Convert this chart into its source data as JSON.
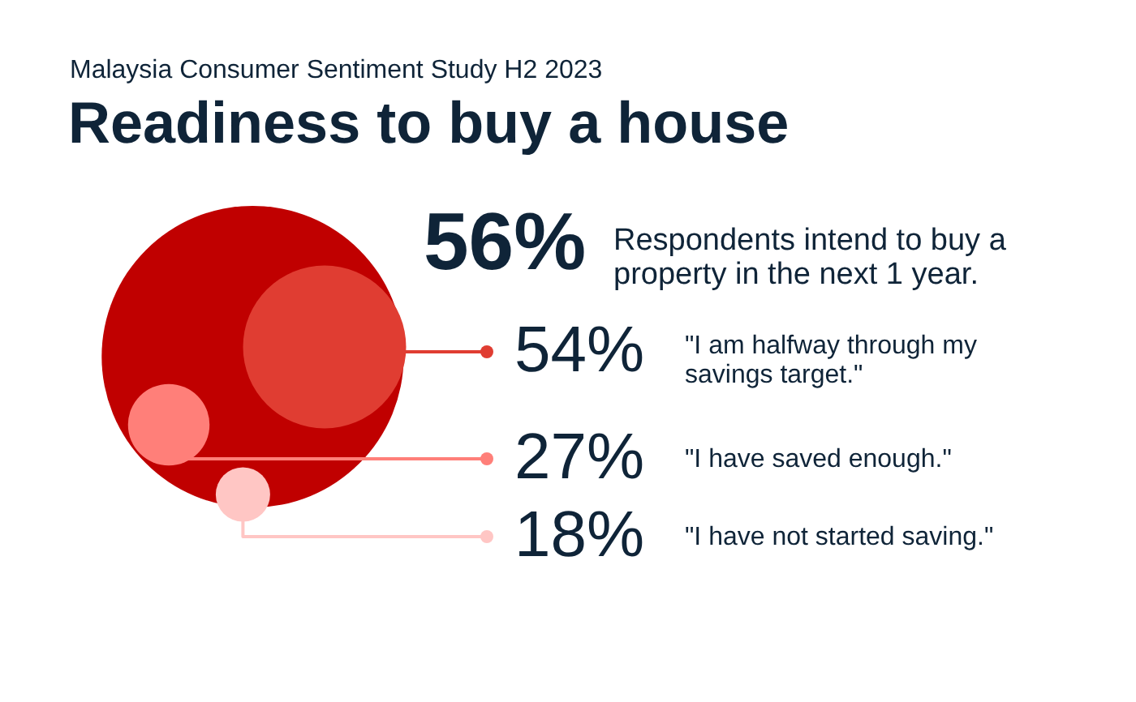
{
  "chart_data": {
    "type": "other",
    "title": "Readiness to buy a house",
    "subtitle": "Malaysia Consumer Sentiment Study H2 2023",
    "categories": [
      "Respondents intend to buy a property in the next 1 year.",
      "\"I am halfway through my savings target.\"",
      "\"I have saved enough.\"",
      "\"I have not started saving.\""
    ],
    "values": [
      56,
      54,
      27,
      18
    ],
    "value_labels": [
      "56%",
      "54%",
      "27%",
      "18%"
    ],
    "colors": [
      "#c00000",
      "#e03d32",
      "#ff7f79",
      "#ffc6c4"
    ]
  }
}
